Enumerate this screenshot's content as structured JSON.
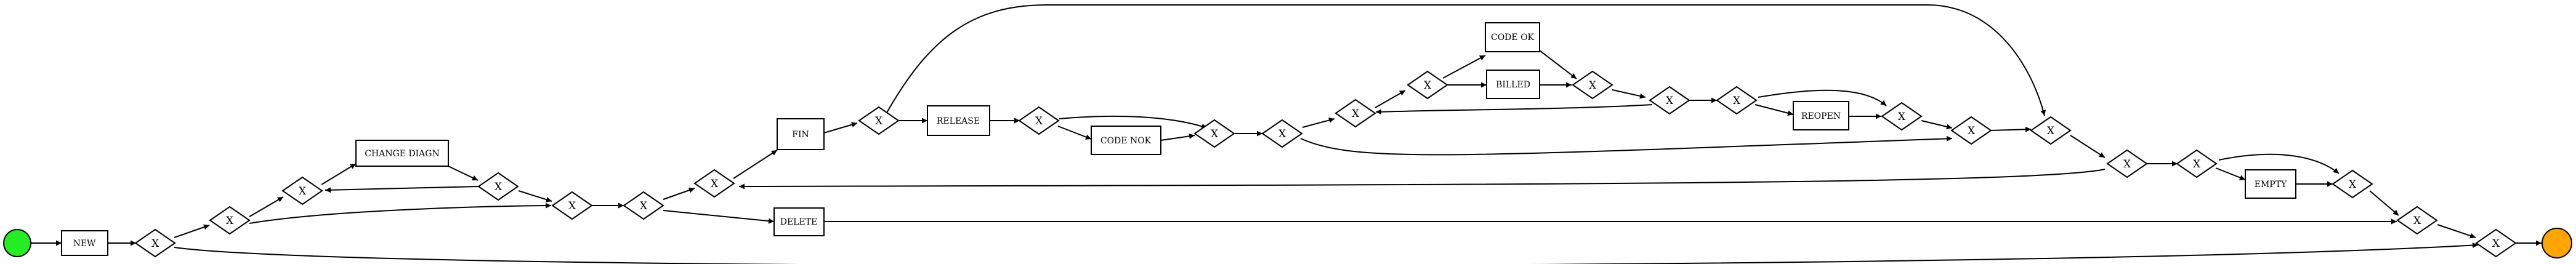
{
  "colors": {
    "start": "#22ee22",
    "end": "#ffa500",
    "stroke": "#000000",
    "fill": "#ffffff"
  },
  "events": {
    "start": "start-event",
    "end": "end-event"
  },
  "activities": {
    "new": "NEW",
    "change_diagn": "CHANGE DIAGN",
    "fin": "FIN",
    "release": "RELEASE",
    "delete": "DELETE",
    "code_nok": "CODE NOK",
    "code_ok": "CODE OK",
    "billed": "BILLED",
    "reopen": "REOPEN",
    "empty": "EMPTY"
  },
  "gateway_label": "X",
  "gateway_ids": [
    "g1",
    "g2",
    "g3",
    "g4",
    "g5",
    "g6",
    "g7",
    "g8",
    "g9",
    "g10",
    "g11",
    "g12",
    "g13",
    "g14",
    "g15",
    "g16",
    "g17",
    "g18",
    "g19",
    "g20",
    "g21",
    "g22",
    "g23",
    "g24"
  ]
}
